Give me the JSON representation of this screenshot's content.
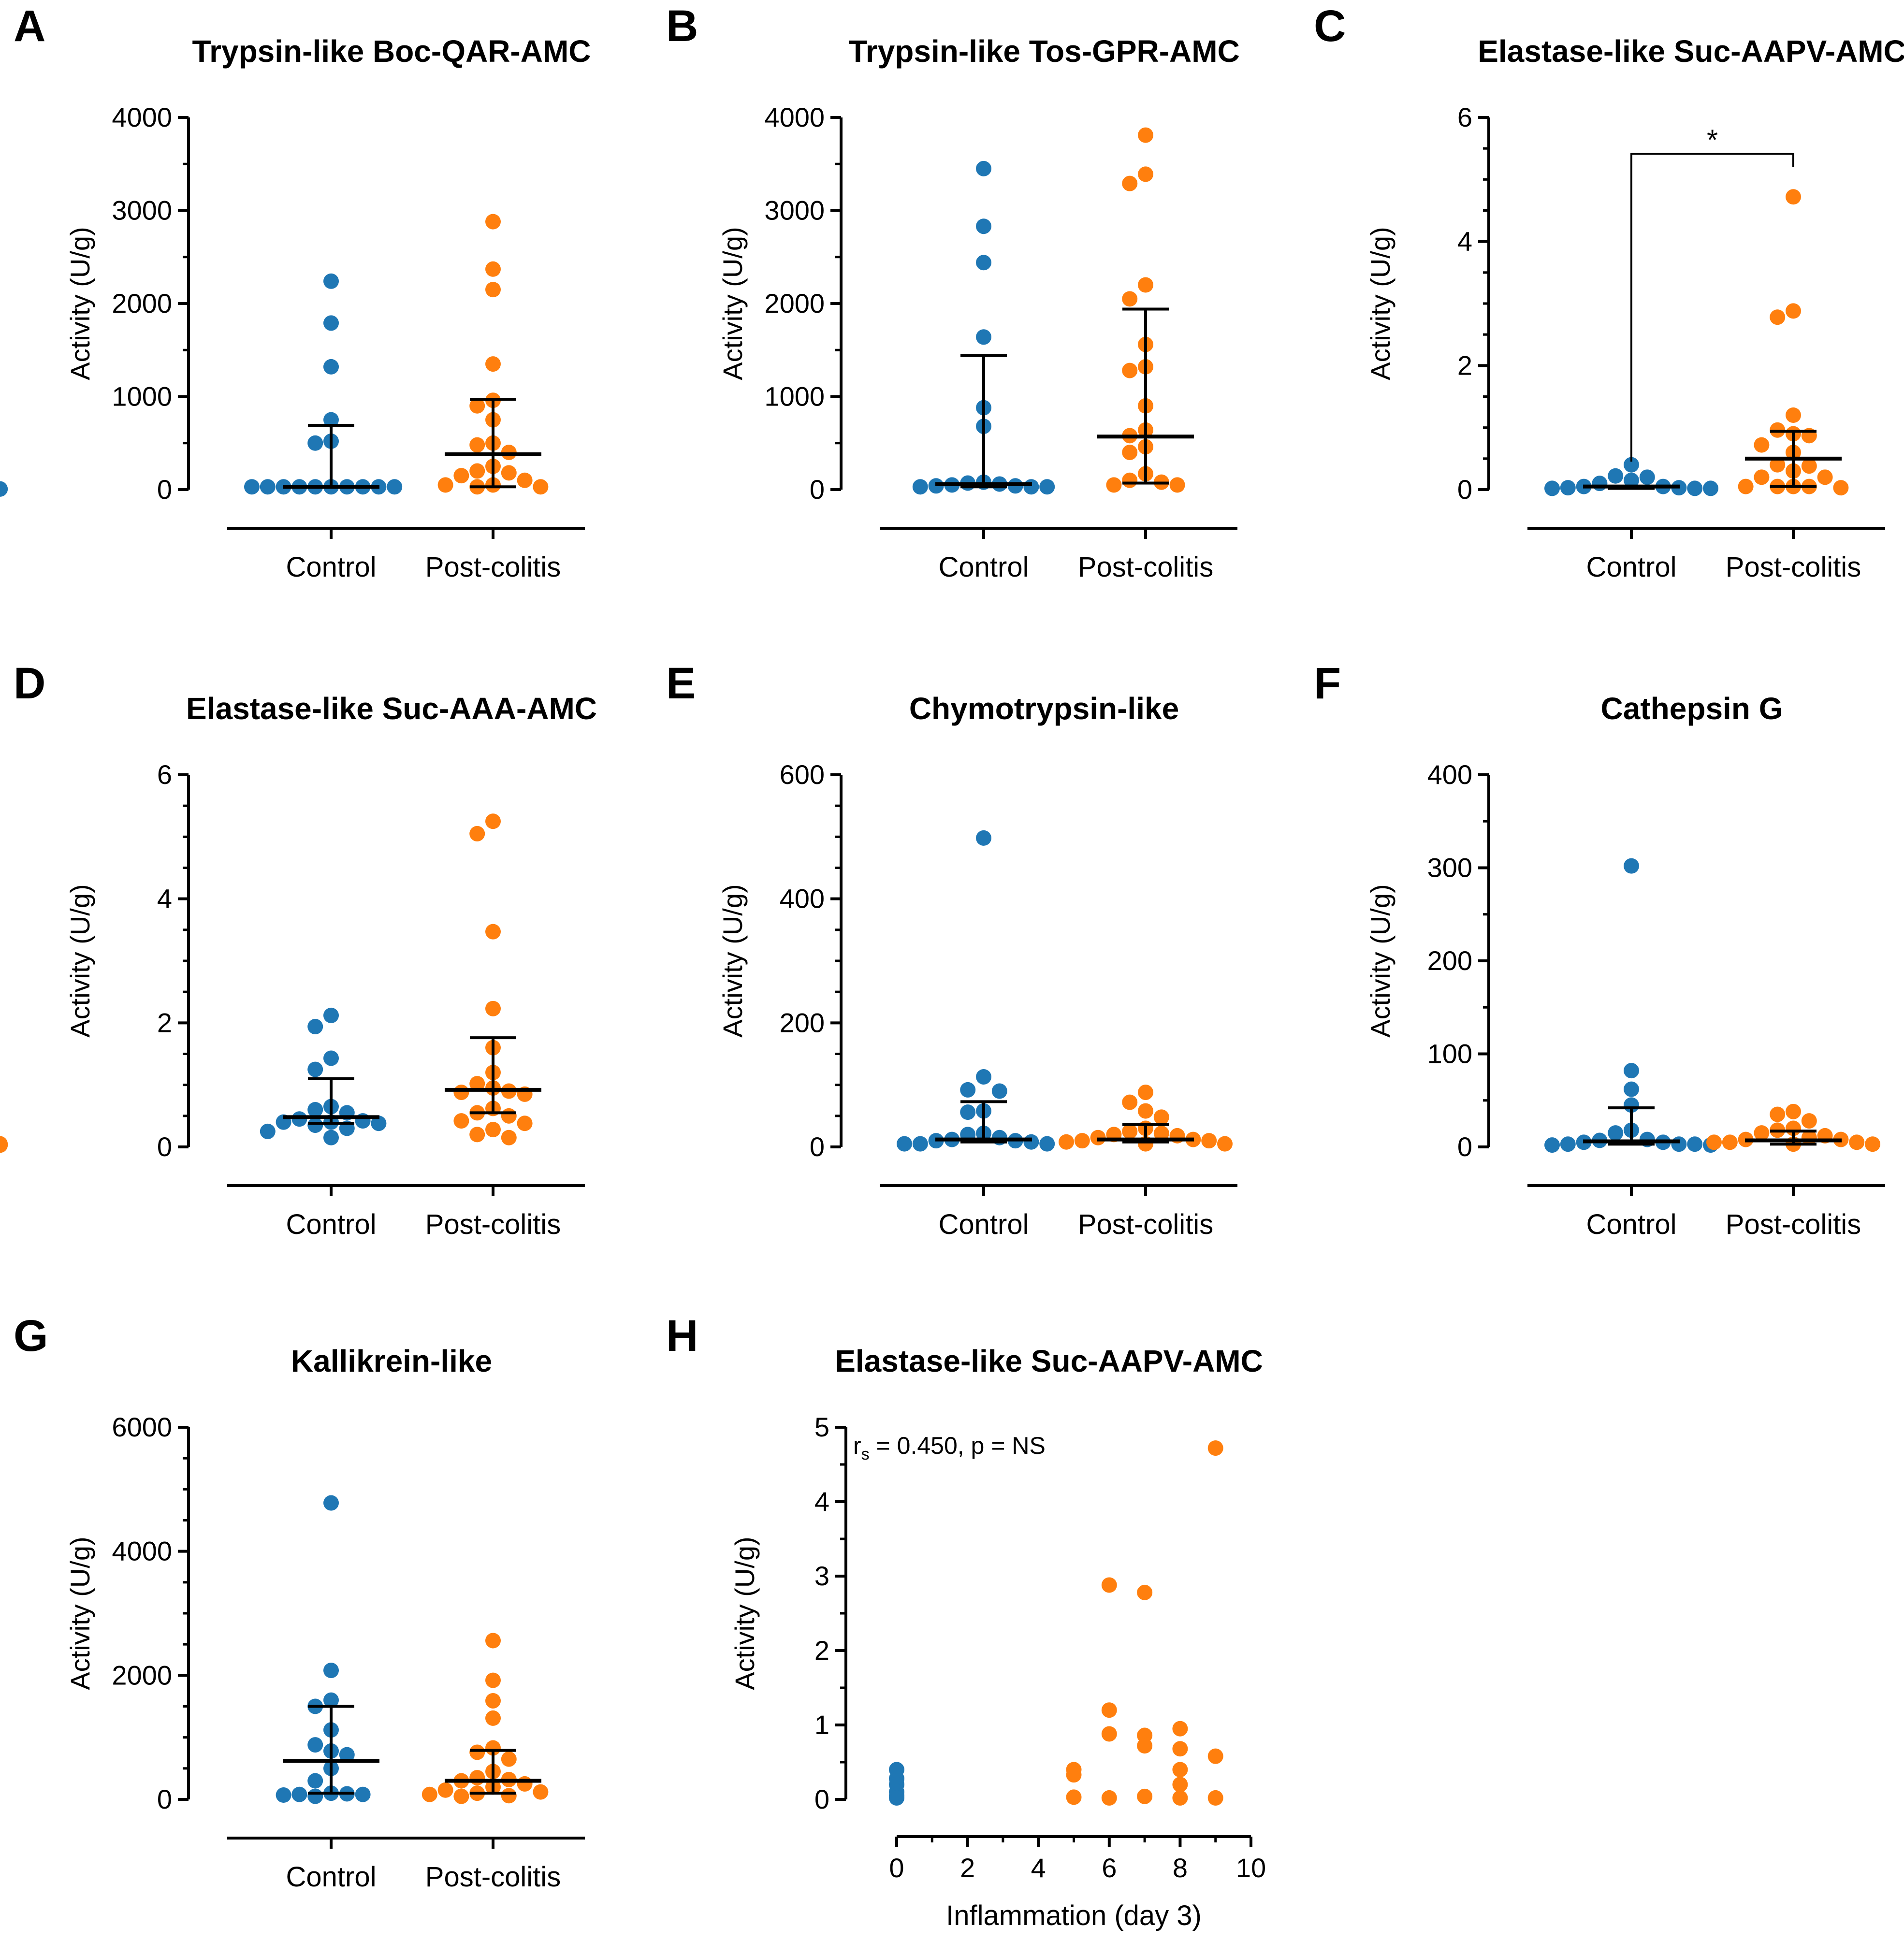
{
  "colors": {
    "control": "#1f77b4",
    "post_colitis": "#ff7f0e",
    "axis": "#000000"
  },
  "categories": [
    "Control",
    "Post-colitis"
  ],
  "y_axis_label": "Activity (U/g)",
  "chart_data": [
    {
      "id": "A",
      "type": "scatter",
      "letter": "A",
      "title": "Trypsin-like Boc-QAR-AMC",
      "ylabel": "Activity (U/g)",
      "ylim": [
        0,
        4000
      ],
      "yticks": [
        0,
        1000,
        2000,
        3000,
        4000
      ],
      "tick_labels": [
        "0",
        "1000",
        "2000",
        "3000",
        "4000"
      ],
      "categories": [
        "Control",
        "Post-colitis"
      ],
      "series": [
        {
          "name": "Control",
          "values": [
            2240,
            1790,
            1320,
            750,
            520,
            500,
            30,
            30,
            30,
            30,
            30,
            30,
            30,
            30,
            30,
            30
          ],
          "median": 30,
          "iqr": [
            30,
            690
          ]
        },
        {
          "name": "Post-colitis",
          "values": [
            2880,
            2370,
            2150,
            1350,
            960,
            900,
            750,
            500,
            480,
            400,
            250,
            200,
            180,
            150,
            100,
            50,
            50,
            30,
            30
          ],
          "median": 380,
          "iqr": [
            30,
            970
          ]
        }
      ]
    },
    {
      "id": "B",
      "type": "scatter",
      "letter": "B",
      "title": "Trypsin-like Tos-GPR-AMC",
      "ylabel": "Activity (U/g)",
      "ylim": [
        0,
        4000
      ],
      "yticks": [
        0,
        1000,
        2000,
        3000,
        4000
      ],
      "tick_labels": [
        "0",
        "1000",
        "2000",
        "3000",
        "4000"
      ],
      "categories": [
        "Control",
        "Post-colitis"
      ],
      "series": [
        {
          "name": "Control",
          "values": [
            3450,
            2830,
            2440,
            1640,
            880,
            680,
            80,
            70,
            60,
            50,
            40,
            40,
            30,
            30,
            30
          ],
          "median": 60,
          "iqr": [
            30,
            1440
          ]
        },
        {
          "name": "Post-colitis",
          "values": [
            3810,
            3390,
            3290,
            2200,
            2050,
            1560,
            1320,
            1280,
            900,
            640,
            580,
            460,
            400,
            170,
            100,
            80,
            50,
            50
          ],
          "median": 570,
          "iqr": [
            70,
            1940
          ]
        }
      ]
    },
    {
      "id": "C",
      "type": "scatter",
      "letter": "C",
      "title": "Elastase-like Suc-AAPV-AMC",
      "ylabel": "Activity (U/g)",
      "ylim": [
        0,
        6
      ],
      "yticks": [
        0,
        2,
        4,
        6
      ],
      "tick_labels": [
        "0",
        "2",
        "4",
        "6"
      ],
      "categories": [
        "Control",
        "Post-colitis"
      ],
      "significance": "*",
      "series": [
        {
          "name": "Control",
          "values": [
            0.4,
            0.22,
            0.2,
            0.15,
            0.1,
            0.05,
            0.05,
            0.03,
            0.03,
            0.02,
            0.02,
            0.02,
            0.01,
            0.01,
            0.01
          ],
          "median": 0.05,
          "iqr": [
            0.02,
            0.05
          ]
        },
        {
          "name": "Post-colitis",
          "values": [
            4.72,
            2.88,
            2.78,
            1.2,
            0.96,
            0.9,
            0.87,
            0.72,
            0.6,
            0.4,
            0.38,
            0.3,
            0.2,
            0.2,
            0.05,
            0.05,
            0.05,
            0.05,
            0.03
          ],
          "median": 0.5,
          "iqr": [
            0.05,
            0.94
          ]
        }
      ]
    },
    {
      "id": "D",
      "type": "scatter",
      "letter": "D",
      "title": "Elastase-like Suc-AAA-AMC",
      "ylabel": "Activity (U/g)",
      "ylim": [
        0,
        6
      ],
      "yticks": [
        0,
        2,
        4,
        6
      ],
      "tick_labels": [
        "0",
        "2",
        "4",
        "6"
      ],
      "categories": [
        "Control",
        "Post-colitis"
      ],
      "series": [
        {
          "name": "Control",
          "values": [
            2.12,
            1.94,
            1.43,
            1.25,
            0.65,
            0.6,
            0.55,
            0.45,
            0.42,
            0.4,
            0.4,
            0.38,
            0.35,
            0.3,
            0.25,
            0.15
          ],
          "median": 0.48,
          "iqr": [
            0.38,
            1.1
          ]
        },
        {
          "name": "Post-colitis",
          "values": [
            5.25,
            5.05,
            3.47,
            2.23,
            1.6,
            1.2,
            1.02,
            0.95,
            0.9,
            0.88,
            0.85,
            0.62,
            0.55,
            0.5,
            0.42,
            0.38,
            0.28,
            0.2,
            0.15
          ],
          "median": 0.92,
          "iqr": [
            0.55,
            1.76
          ]
        }
      ]
    },
    {
      "id": "E",
      "type": "scatter",
      "letter": "E",
      "title": "Chymotrypsin-like",
      "ylabel": "Activity (U/g)",
      "ylim": [
        0,
        600
      ],
      "yticks": [
        0,
        200,
        400,
        600
      ],
      "tick_labels": [
        "0",
        "200",
        "400",
        "600"
      ],
      "categories": [
        "Control",
        "Post-colitis"
      ],
      "series": [
        {
          "name": "Control",
          "values": [
            498,
            113,
            92,
            90,
            58,
            56,
            22,
            20,
            15,
            12,
            10,
            10,
            8,
            5,
            5,
            5
          ],
          "median": 12,
          "iqr": [
            8,
            73
          ]
        },
        {
          "name": "Post-colitis",
          "values": [
            88,
            72,
            58,
            48,
            30,
            25,
            22,
            20,
            18,
            15,
            12,
            10,
            10,
            8,
            5,
            5,
            5,
            3,
            3
          ],
          "median": 12,
          "iqr": [
            8,
            36
          ]
        }
      ]
    },
    {
      "id": "F",
      "type": "scatter",
      "letter": "F",
      "title": "Cathepsin G",
      "ylabel": "Activity (U/g)",
      "ylim": [
        0,
        400
      ],
      "yticks": [
        0,
        100,
        200,
        300,
        400
      ],
      "tick_labels": [
        "0",
        "100",
        "200",
        "300",
        "400"
      ],
      "categories": [
        "Control",
        "Post-colitis"
      ],
      "series": [
        {
          "name": "Control",
          "values": [
            302,
            82,
            62,
            45,
            18,
            15,
            8,
            7,
            5,
            5,
            3,
            3,
            3,
            2,
            2,
            2
          ],
          "median": 6,
          "iqr": [
            3,
            42
          ]
        },
        {
          "name": "Post-colitis",
          "values": [
            38,
            35,
            28,
            20,
            18,
            15,
            12,
            10,
            8,
            8,
            5,
            5,
            5,
            3,
            3,
            3,
            2,
            2,
            2
          ],
          "median": 7,
          "iqr": [
            3,
            17
          ]
        }
      ]
    },
    {
      "id": "G",
      "type": "scatter",
      "letter": "G",
      "title": "Kallikrein-like",
      "ylabel": "Activity (U/g)",
      "ylim": [
        0,
        6000
      ],
      "yticks": [
        0,
        2000,
        4000,
        6000
      ],
      "tick_labels": [
        "0",
        "2000",
        "4000",
        "6000"
      ],
      "categories": [
        "Control",
        "Post-colitis"
      ],
      "series": [
        {
          "name": "Control",
          "values": [
            4780,
            2080,
            1600,
            1500,
            1120,
            880,
            780,
            720,
            500,
            300,
            100,
            90,
            80,
            80,
            70,
            50
          ],
          "median": 620,
          "iqr": [
            100,
            1500
          ]
        },
        {
          "name": "Post-colitis",
          "values": [
            2560,
            1920,
            1590,
            1310,
            830,
            760,
            650,
            450,
            350,
            320,
            300,
            250,
            200,
            150,
            120,
            100,
            80,
            60,
            50
          ],
          "median": 300,
          "iqr": [
            100,
            790
          ]
        }
      ]
    },
    {
      "id": "H",
      "type": "scatter",
      "letter": "H",
      "title": "Elastase-like Suc-AAPV-AMC",
      "ylabel": "Activity (U/g)",
      "xlabel": "Inflammation (day 3)",
      "xlim": [
        0,
        10
      ],
      "xticks": [
        0,
        2,
        4,
        6,
        8,
        10
      ],
      "xtick_labels": [
        "0",
        "2",
        "4",
        "6",
        "8",
        "10"
      ],
      "ylim": [
        0,
        5
      ],
      "yticks": [
        0,
        1,
        2,
        3,
        4,
        5
      ],
      "tick_labels": [
        "0",
        "1",
        "2",
        "3",
        "4",
        "5"
      ],
      "annotation": {
        "prefix": "r",
        "subscript": "s",
        "text": " = 0.450, p = NS"
      },
      "series": [
        {
          "name": "Control",
          "points": [
            [
              0,
              0.4
            ],
            [
              0,
              0.28
            ],
            [
              0,
              0.2
            ],
            [
              0,
              0.1
            ],
            [
              0,
              0.05
            ],
            [
              0,
              0.02
            ]
          ]
        },
        {
          "name": "Post-colitis",
          "points": [
            [
              5,
              0.4
            ],
            [
              5,
              0.33
            ],
            [
              5,
              0.03
            ],
            [
              6,
              2.88
            ],
            [
              6,
              1.2
            ],
            [
              6,
              0.88
            ],
            [
              6,
              0.02
            ],
            [
              7,
              2.78
            ],
            [
              7,
              0.86
            ],
            [
              7,
              0.72
            ],
            [
              7,
              0.04
            ],
            [
              8,
              0.95
            ],
            [
              8,
              0.68
            ],
            [
              8,
              0.4
            ],
            [
              8,
              0.2
            ],
            [
              8,
              0.02
            ],
            [
              9,
              4.72
            ],
            [
              9,
              0.58
            ],
            [
              9,
              0.02
            ]
          ]
        }
      ]
    }
  ]
}
